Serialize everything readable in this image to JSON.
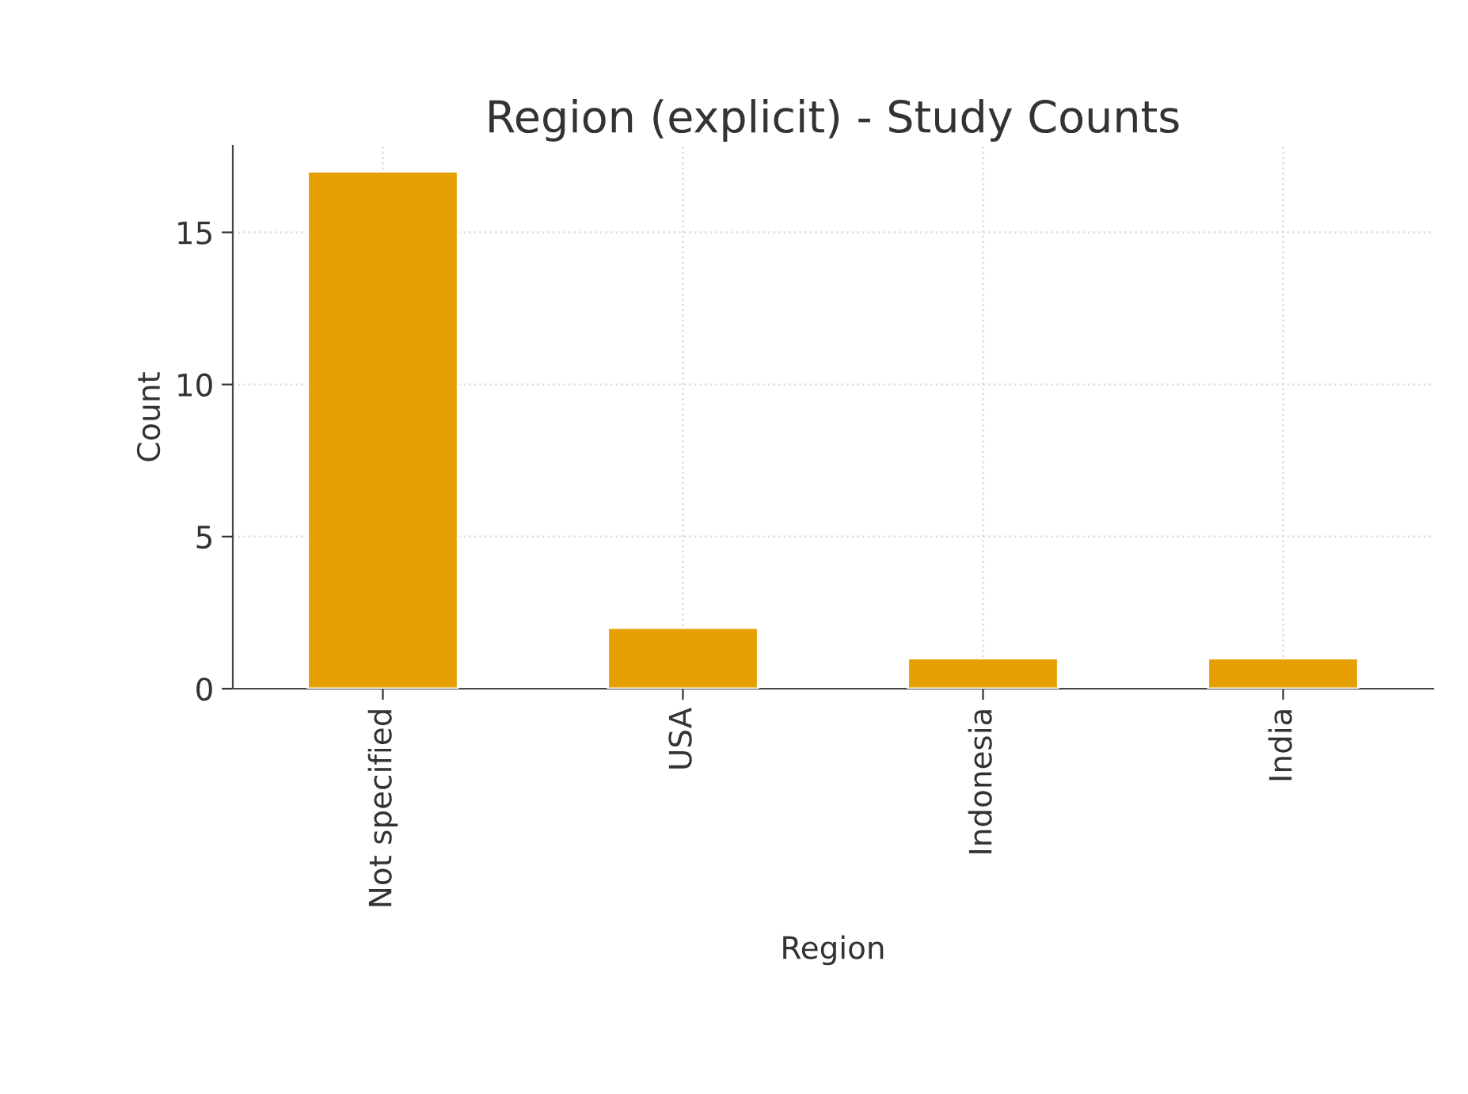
{
  "chart_data": {
    "type": "bar",
    "title": "Region (explicit) - Study Counts",
    "xlabel": "Region",
    "ylabel": "Count",
    "categories": [
      "Not specified",
      "USA",
      "Indonesia",
      "India"
    ],
    "values": [
      17,
      2,
      1,
      1
    ],
    "color": "#e69f00",
    "ylim": [
      0,
      17.85
    ],
    "yticks": [
      0,
      5,
      10,
      15
    ],
    "grid": true
  }
}
